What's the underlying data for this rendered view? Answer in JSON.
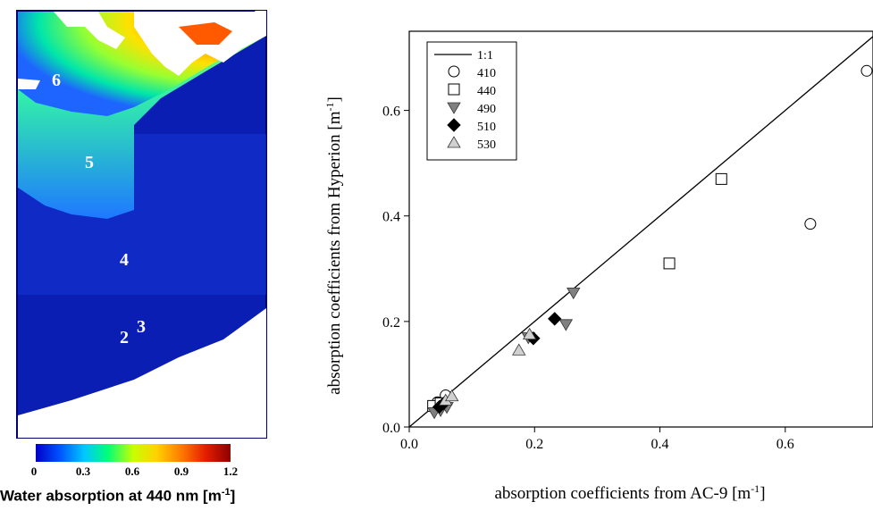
{
  "map": {
    "caption_text": "Water absorption at 440 nm [m",
    "caption_sup": "-1",
    "caption_close": "]",
    "station_labels": [
      "6",
      "5",
      "4",
      "2",
      "3"
    ],
    "colorbar_ticks": [
      "0",
      "0.3",
      "0.6",
      "0.9",
      "1.2"
    ],
    "colorbar_colors": [
      "#0000c8",
      "#0050ff",
      "#00c8ff",
      "#00ff78",
      "#c8ff00",
      "#ffd200",
      "#ff7800",
      "#e61e00",
      "#8c0000"
    ]
  },
  "chart_data": {
    "type": "scatter",
    "xlabel_text": "absorption coefficients from AC-9  [m",
    "xlabel_sup": "-1",
    "xlabel_close": "]",
    "ylabel_text": "absorption coefficients from Hyperion  [m",
    "ylabel_sup": "-1",
    "ylabel_close": "]",
    "xlim": [
      0,
      0.74
    ],
    "ylim": [
      0,
      0.75
    ],
    "xticks": [
      0.0,
      0.2,
      0.4,
      0.6
    ],
    "xtick_labels": [
      "0.0",
      "0.2",
      "0.4",
      "0.6"
    ],
    "yticks": [
      0.0,
      0.2,
      0.4,
      0.6
    ],
    "ytick_labels": [
      "0.0",
      "0.2",
      "0.4",
      "0.6"
    ],
    "legend_position": "top-left",
    "reference_line": {
      "label": "1:1",
      "slope": 1,
      "intercept": 0
    },
    "series": [
      {
        "name": "410",
        "marker": "circle-open",
        "x": [
          0.04,
          0.045,
          0.058,
          0.64,
          0.73
        ],
        "y": [
          0.04,
          0.047,
          0.06,
          0.385,
          0.675
        ]
      },
      {
        "name": "440",
        "marker": "square-open",
        "x": [
          0.038,
          0.05,
          0.415,
          0.498
        ],
        "y": [
          0.04,
          0.045,
          0.31,
          0.47
        ]
      },
      {
        "name": "490",
        "marker": "triangle-down-gray",
        "x": [
          0.04,
          0.05,
          0.06,
          0.19,
          0.25,
          0.262
        ],
        "y": [
          0.028,
          0.032,
          0.038,
          0.17,
          0.195,
          0.255
        ]
      },
      {
        "name": "510",
        "marker": "diamond-black",
        "x": [
          0.048,
          0.055,
          0.198,
          0.232
        ],
        "y": [
          0.038,
          0.045,
          0.168,
          0.205
        ]
      },
      {
        "name": "530",
        "marker": "triangle-up-light",
        "x": [
          0.058,
          0.068,
          0.175,
          0.192
        ],
        "y": [
          0.05,
          0.058,
          0.145,
          0.175
        ]
      }
    ]
  }
}
